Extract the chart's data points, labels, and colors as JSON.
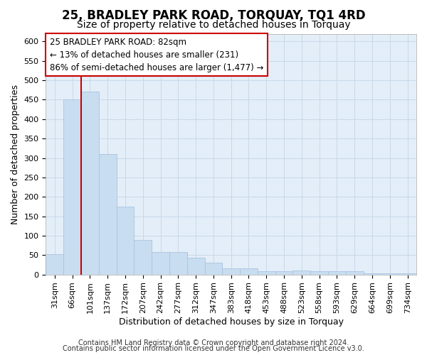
{
  "title": "25, BRADLEY PARK ROAD, TORQUAY, TQ1 4RD",
  "subtitle": "Size of property relative to detached houses in Torquay",
  "xlabel": "Distribution of detached houses by size in Torquay",
  "ylabel": "Number of detached properties",
  "categories": [
    "31sqm",
    "66sqm",
    "101sqm",
    "137sqm",
    "172sqm",
    "207sqm",
    "242sqm",
    "277sqm",
    "312sqm",
    "347sqm",
    "383sqm",
    "418sqm",
    "453sqm",
    "488sqm",
    "523sqm",
    "558sqm",
    "593sqm",
    "629sqm",
    "664sqm",
    "699sqm",
    "734sqm"
  ],
  "bar_heights": [
    53,
    451,
    471,
    310,
    175,
    88,
    58,
    58,
    43,
    31,
    15,
    15,
    8,
    8,
    10,
    8,
    8,
    8,
    3,
    3,
    3
  ],
  "bar_color": "#c9ddf0",
  "bar_edge_color": "#a8c4e0",
  "vline_x_idx": 1.5,
  "vline_color": "#cc0000",
  "annotation_line1": "25 BRADLEY PARK ROAD: 82sqm",
  "annotation_line2": "← 13% of detached houses are smaller (231)",
  "annotation_line3": "86% of semi-detached houses are larger (1,477) →",
  "annotation_box_color": "#ffffff",
  "annotation_box_edge": "#cc0000",
  "ylim": [
    0,
    620
  ],
  "yticks": [
    0,
    50,
    100,
    150,
    200,
    250,
    300,
    350,
    400,
    450,
    500,
    550,
    600
  ],
  "grid_color": "#c8d8e8",
  "bg_color": "#e4eef8",
  "footer_line1": "Contains HM Land Registry data © Crown copyright and database right 2024.",
  "footer_line2": "Contains public sector information licensed under the Open Government Licence v3.0.",
  "title_fontsize": 12,
  "subtitle_fontsize": 10,
  "axis_label_fontsize": 9,
  "tick_fontsize": 8,
  "annotation_fontsize": 8.5,
  "footer_fontsize": 7
}
